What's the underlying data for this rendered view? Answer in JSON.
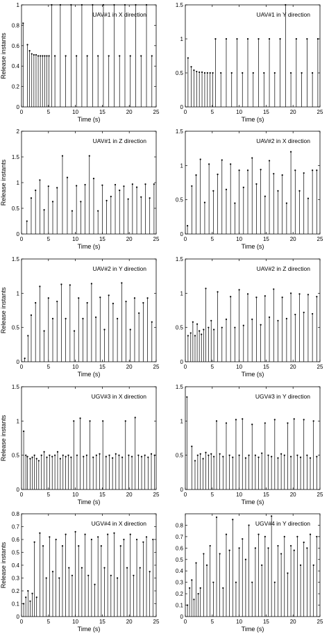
{
  "chart_data": [
    {
      "type": "stem",
      "title": "UAV#1 in X direction",
      "xlabel": "Time (s)",
      "ylabel": "Release instants",
      "xlim": [
        0,
        25
      ],
      "ylim": [
        0,
        1
      ],
      "xticks": [
        "0",
        "5",
        "10",
        "15",
        "20",
        "25"
      ],
      "yticks": [
        "0",
        "0.2",
        "0.4",
        "0.6",
        "0.8",
        "1"
      ],
      "grid": false,
      "x": [
        0.3,
        1.1,
        1.5,
        1.9,
        2.3,
        2.7,
        3.1,
        3.5,
        3.9,
        4.3,
        4.7,
        5.1,
        5.6,
        6.2,
        7.2,
        8.2,
        9.2,
        10.2,
        11.2,
        12.2,
        13.2,
        14.2,
        15.2,
        16.2,
        17.2,
        18.2,
        19.2,
        20.2,
        21.2,
        22.2,
        23.2,
        24.2
      ],
      "values": [
        0.82,
        0.61,
        0.55,
        0.52,
        0.51,
        0.51,
        0.5,
        0.5,
        0.5,
        0.5,
        0.5,
        0.5,
        1.0,
        0.5,
        1.0,
        0.5,
        1.0,
        0.5,
        1.0,
        0.5,
        1.0,
        0.5,
        1.0,
        0.5,
        1.0,
        0.5,
        1.0,
        0.5,
        1.0,
        0.5,
        1.0,
        0.5
      ]
    },
    {
      "type": "stem",
      "title": "UAV#1 in Y direction",
      "xlabel": "Time (s)",
      "ylabel": "",
      "xlim": [
        0,
        25
      ],
      "ylim": [
        0,
        1.5
      ],
      "xticks": [
        "0",
        "5",
        "10",
        "15",
        "20",
        "25"
      ],
      "yticks": [
        "0",
        "0.5",
        "1",
        "1.5"
      ],
      "grid": false,
      "x": [
        0.5,
        1.1,
        1.6,
        2.1,
        2.6,
        3.1,
        3.6,
        4.1,
        4.6,
        5.1,
        5.6,
        6.6,
        7.6,
        8.6,
        9.6,
        10.6,
        11.6,
        12.6,
        13.6,
        14.6,
        15.6,
        16.6,
        17.6,
        18.6,
        19.6,
        20.6,
        21.6,
        22.6,
        23.6,
        24.6
      ],
      "values": [
        0.72,
        0.59,
        0.54,
        0.52,
        0.51,
        0.51,
        0.5,
        0.5,
        0.5,
        0.5,
        1.0,
        0.5,
        1.0,
        0.5,
        1.0,
        0.5,
        1.0,
        0.5,
        1.0,
        0.5,
        1.0,
        0.5,
        1.0,
        1.5,
        0.5,
        1.0,
        0.5,
        1.0,
        0.5,
        1.0
      ]
    },
    {
      "type": "stem",
      "title": "UAV#1 in Z direction",
      "xlabel": "Time (s)",
      "ylabel": "Release instants",
      "xlim": [
        0,
        25
      ],
      "ylim": [
        0,
        2
      ],
      "xticks": [
        "0",
        "5",
        "10",
        "15",
        "20",
        "25"
      ],
      "yticks": [
        "0",
        "0.5",
        "1",
        "1.5",
        "2"
      ],
      "grid": false,
      "x": [
        1.0,
        1.8,
        2.6,
        3.4,
        4.2,
        5.0,
        5.8,
        6.6,
        7.6,
        8.5,
        9.4,
        10.2,
        11.0,
        11.8,
        12.6,
        13.4,
        14.2,
        15.0,
        15.8,
        16.6,
        17.4,
        18.2,
        19.0,
        19.8,
        20.6,
        21.4,
        22.2,
        23.0,
        23.8,
        24.6
      ],
      "values": [
        0.25,
        0.7,
        0.85,
        1.05,
        0.47,
        0.93,
        0.63,
        0.9,
        1.52,
        1.1,
        0.45,
        0.94,
        0.63,
        0.96,
        1.52,
        1.08,
        0.45,
        0.95,
        0.65,
        0.73,
        0.96,
        0.85,
        0.93,
        0.68,
        0.97,
        0.91,
        0.72,
        0.97,
        0.7,
        0.97
      ]
    },
    {
      "type": "stem",
      "title": "UAV#2 in X direction",
      "xlabel": "Time (s)",
      "ylabel": "",
      "xlim": [
        0,
        25
      ],
      "ylim": [
        0,
        1.5
      ],
      "xticks": [
        "0",
        "5",
        "10",
        "15",
        "20",
        "25"
      ],
      "yticks": [
        "0",
        "0.5",
        "1",
        "1.5"
      ],
      "grid": false,
      "x": [
        0.4,
        1.2,
        2.0,
        2.8,
        3.6,
        4.4,
        5.2,
        6.0,
        6.8,
        7.6,
        8.4,
        9.2,
        10.0,
        10.8,
        11.6,
        12.4,
        13.2,
        14.0,
        14.8,
        15.6,
        16.4,
        17.2,
        18.0,
        18.8,
        19.6,
        20.4,
        21.2,
        22.0,
        22.8,
        23.6,
        24.4
      ],
      "values": [
        0.12,
        0.7,
        0.86,
        1.09,
        0.46,
        1.02,
        0.63,
        0.87,
        1.08,
        0.65,
        1.02,
        0.45,
        0.93,
        0.68,
        0.93,
        1.11,
        0.73,
        0.94,
        0.55,
        1.07,
        0.88,
        0.63,
        0.86,
        0.45,
        1.2,
        0.93,
        0.63,
        0.89,
        0.52,
        0.93,
        0.93
      ]
    },
    {
      "type": "stem",
      "title": "UAV#2 in Y direction",
      "xlabel": "Time (s)",
      "ylabel": "Release instants",
      "xlim": [
        0,
        25
      ],
      "ylim": [
        0,
        1.5
      ],
      "xticks": [
        "0",
        "5",
        "10",
        "15",
        "20",
        "25"
      ],
      "yticks": [
        "0",
        "0.5",
        "1",
        "1.5"
      ],
      "grid": false,
      "x": [
        0.6,
        1.2,
        1.8,
        2.6,
        3.4,
        4.2,
        5.0,
        5.8,
        6.6,
        7.4,
        8.2,
        9.0,
        9.8,
        10.6,
        11.4,
        12.2,
        13.0,
        13.8,
        14.6,
        15.4,
        16.2,
        17.0,
        17.8,
        18.6,
        19.4,
        20.2,
        21.0,
        21.8,
        22.6,
        23.4,
        24.2
      ],
      "values": [
        0.05,
        0.38,
        0.68,
        0.86,
        1.1,
        0.45,
        0.93,
        0.63,
        0.88,
        1.13,
        0.63,
        1.12,
        0.45,
        0.93,
        0.63,
        0.86,
        1.14,
        0.65,
        0.94,
        0.47,
        0.97,
        0.85,
        0.63,
        1.15,
        0.88,
        0.47,
        0.93,
        0.71,
        0.86,
        0.93,
        0.58
      ]
    },
    {
      "type": "stem",
      "title": "UAV#2 in Z direction",
      "xlabel": "Time (s)",
      "ylabel": "",
      "xlim": [
        0,
        25
      ],
      "ylim": [
        0,
        1.5
      ],
      "xticks": [
        "0",
        "5",
        "10",
        "15",
        "20",
        "25"
      ],
      "yticks": [
        "0",
        "0.5",
        "1",
        "1.5"
      ],
      "grid": false,
      "x": [
        0.5,
        1.0,
        1.4,
        1.8,
        2.2,
        2.6,
        3.0,
        3.4,
        3.8,
        4.3,
        4.8,
        5.3,
        6.0,
        6.8,
        7.6,
        8.4,
        9.2,
        10.0,
        10.8,
        11.6,
        12.4,
        13.2,
        14.0,
        14.8,
        15.6,
        16.4,
        17.2,
        18.0,
        18.8,
        19.6,
        20.4,
        21.2,
        22.0,
        22.8,
        23.6,
        24.4
      ],
      "values": [
        0.38,
        0.42,
        0.58,
        0.38,
        0.55,
        0.45,
        0.4,
        0.47,
        1.07,
        0.5,
        0.6,
        0.47,
        1.02,
        0.5,
        0.62,
        0.95,
        0.5,
        1.05,
        0.53,
        0.99,
        0.62,
        0.94,
        0.54,
        0.96,
        0.65,
        1.06,
        0.6,
        0.94,
        0.63,
        1.0,
        0.69,
        0.99,
        0.72,
        0.98,
        0.7,
        0.95
      ]
    },
    {
      "type": "stem",
      "title": "UGV#3 in X direction",
      "xlabel": "Time (s)",
      "ylabel": "Release instants",
      "xlim": [
        0,
        25
      ],
      "ylim": [
        0,
        1.5
      ],
      "xticks": [
        "0",
        "5",
        "10",
        "15",
        "20",
        "25"
      ],
      "yticks": [
        "0",
        "0.5",
        "1",
        "1.5"
      ],
      "grid": false,
      "x": [
        0.4,
        0.8,
        1.1,
        1.6,
        2.0,
        2.4,
        2.8,
        3.2,
        3.7,
        4.2,
        4.7,
        5.2,
        5.7,
        6.2,
        6.7,
        7.2,
        7.7,
        8.2,
        8.7,
        9.2,
        9.7,
        10.3,
        10.9,
        11.5,
        12.1,
        12.7,
        13.3,
        13.9,
        14.5,
        15.1,
        15.7,
        16.3,
        16.9,
        17.5,
        18.1,
        18.7,
        19.3,
        19.9,
        20.5,
        21.1,
        21.7,
        22.3,
        22.9,
        23.5,
        24.1,
        24.7
      ],
      "values": [
        0.85,
        0.5,
        0.48,
        0.45,
        0.47,
        0.5,
        0.45,
        0.42,
        0.5,
        0.55,
        0.47,
        0.5,
        0.48,
        0.5,
        0.55,
        0.45,
        0.5,
        0.48,
        0.5,
        0.47,
        1.0,
        0.5,
        1.04,
        0.48,
        0.5,
        1.0,
        0.47,
        0.5,
        0.52,
        1.0,
        0.48,
        0.5,
        0.46,
        0.52,
        0.5,
        0.47,
        1.0,
        0.5,
        0.48,
        1.05,
        0.5,
        0.48,
        0.5,
        0.47,
        0.52,
        0.5
      ]
    },
    {
      "type": "stem",
      "title": "UGV#3 in Y direction",
      "xlabel": "Time (s)",
      "ylabel": "",
      "xlim": [
        0,
        25
      ],
      "ylim": [
        0,
        1.5
      ],
      "xticks": [
        "0",
        "5",
        "10",
        "15",
        "20",
        "25"
      ],
      "yticks": [
        "0",
        "0.5",
        "1",
        "1.5"
      ],
      "grid": false,
      "x": [
        0.3,
        1.2,
        1.8,
        2.3,
        2.8,
        3.3,
        3.8,
        4.3,
        4.8,
        5.3,
        5.8,
        6.4,
        7.0,
        7.6,
        8.2,
        8.8,
        9.4,
        10.0,
        10.6,
        11.2,
        11.8,
        12.4,
        13.0,
        13.6,
        14.2,
        14.8,
        15.4,
        16.0,
        16.6,
        17.2,
        17.8,
        18.4,
        19.0,
        19.6,
        20.2,
        20.8,
        21.4,
        22.0,
        22.6,
        23.2,
        23.8,
        24.4
      ],
      "values": [
        1.35,
        0.63,
        0.42,
        0.5,
        0.52,
        0.45,
        0.54,
        0.5,
        0.52,
        0.48,
        1.0,
        0.52,
        0.48,
        0.97,
        0.5,
        0.47,
        1.02,
        0.5,
        1.03,
        0.46,
        0.5,
        0.95,
        0.5,
        0.47,
        0.53,
        0.97,
        0.5,
        0.48,
        1.02,
        0.46,
        0.52,
        0.5,
        0.97,
        0.48,
        1.03,
        0.5,
        0.47,
        1.02,
        0.5,
        0.46,
        1.0,
        0.48
      ]
    },
    {
      "type": "stem",
      "title": "UGV#4 in X direction",
      "xlabel": "Time (s)",
      "ylabel": "Release instants",
      "xlim": [
        0,
        25
      ],
      "ylim": [
        0,
        0.8
      ],
      "xticks": [
        "0",
        "5",
        "10",
        "15",
        "20",
        "25"
      ],
      "yticks": [
        "0",
        "0.1",
        "0.2",
        "0.3",
        "0.4",
        "0.5",
        "0.6",
        "0.7",
        "0.8"
      ],
      "grid": false,
      "x": [
        0.4,
        0.8,
        1.2,
        1.6,
        2.0,
        2.4,
        2.8,
        3.4,
        4.0,
        4.6,
        5.2,
        5.8,
        6.4,
        7.0,
        7.6,
        8.2,
        8.8,
        9.4,
        10.0,
        10.6,
        11.2,
        11.8,
        12.4,
        13.0,
        13.6,
        14.2,
        14.8,
        15.4,
        16.0,
        16.6,
        17.2,
        17.8,
        18.4,
        19.0,
        19.6,
        20.2,
        20.8,
        21.4,
        22.0,
        22.6,
        23.2,
        23.8,
        24.4
      ],
      "values": [
        0.1,
        0.15,
        0.2,
        0.12,
        0.18,
        0.58,
        0.15,
        0.65,
        0.55,
        0.3,
        0.62,
        0.35,
        0.6,
        0.3,
        0.55,
        0.64,
        0.38,
        0.32,
        0.66,
        0.55,
        0.38,
        0.64,
        0.32,
        0.6,
        0.25,
        0.62,
        0.55,
        0.38,
        0.64,
        0.32,
        0.65,
        0.3,
        0.55,
        0.6,
        0.38,
        0.64,
        0.32,
        0.6,
        0.38,
        0.58,
        0.62,
        0.35,
        0.6
      ]
    },
    {
      "type": "stem",
      "title": "UGV#4 in Y direction",
      "xlabel": "Time (s)",
      "ylabel": "",
      "xlim": [
        0,
        25
      ],
      "ylim": [
        0,
        0.9
      ],
      "xticks": [
        "0",
        "5",
        "10",
        "15",
        "20",
        "25"
      ],
      "yticks": [
        "0",
        "0.1",
        "0.2",
        "0.3",
        "0.4",
        "0.5",
        "0.6",
        "0.7",
        "0.8"
      ],
      "grid": false,
      "x": [
        0.4,
        0.8,
        1.2,
        1.6,
        2.0,
        2.4,
        2.8,
        3.4,
        4.0,
        4.6,
        5.2,
        5.8,
        6.4,
        7.0,
        7.6,
        8.2,
        8.8,
        9.4,
        10.0,
        10.6,
        11.2,
        11.8,
        12.4,
        13.0,
        13.6,
        14.2,
        14.8,
        15.4,
        16.0,
        16.6,
        17.2,
        17.8,
        18.4,
        19.0,
        19.6,
        20.2,
        20.8,
        21.4,
        22.0,
        22.6,
        23.2,
        23.8,
        24.4
      ],
      "values": [
        0.1,
        0.25,
        0.32,
        0.15,
        0.47,
        0.2,
        0.25,
        0.55,
        0.45,
        0.62,
        0.3,
        0.87,
        0.55,
        0.25,
        0.72,
        0.58,
        0.85,
        0.3,
        0.6,
        0.68,
        0.5,
        0.8,
        0.3,
        0.6,
        0.72,
        0.45,
        0.7,
        0.6,
        0.88,
        0.3,
        0.62,
        0.55,
        0.7,
        0.38,
        0.62,
        0.58,
        0.7,
        0.45,
        0.65,
        0.6,
        0.72,
        0.45,
        0.7
      ]
    }
  ]
}
